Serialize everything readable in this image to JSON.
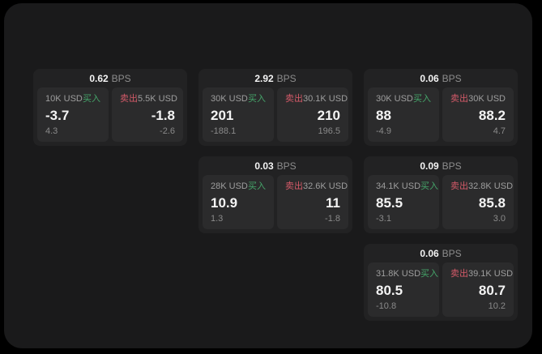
{
  "labels": {
    "bps_unit": "BPS",
    "buy": "买入",
    "sell": "卖出"
  },
  "colors": {
    "page_background": "#000000",
    "panel_background": "#1a1a1b",
    "card_background": "#222223",
    "tile_background": "#2b2b2c",
    "buy_green": "#45a56a",
    "sell_red": "#d45a68",
    "text_primary": "#f4f4f4",
    "text_secondary": "#9e9e9e"
  },
  "cards": [
    {
      "bps": "0.62",
      "buy": {
        "size": "10K USD",
        "price": "-3.7",
        "sub": "4.3"
      },
      "sell": {
        "size": "5.5K USD",
        "price": "-1.8",
        "sub": "-2.6"
      }
    },
    {
      "bps": "2.92",
      "buy": {
        "size": "30K USD",
        "price": "201",
        "sub": "-188.1"
      },
      "sell": {
        "size": "30.1K USD",
        "price": "210",
        "sub": "196.5"
      }
    },
    {
      "bps": "0.06",
      "buy": {
        "size": "30K USD",
        "price": "88",
        "sub": "-4.9"
      },
      "sell": {
        "size": "30K USD",
        "price": "88.2",
        "sub": "4.7"
      }
    },
    {
      "bps": "0.03",
      "buy": {
        "size": "28K USD",
        "price": "10.9",
        "sub": "1.3"
      },
      "sell": {
        "size": "32.6K USD",
        "price": "11",
        "sub": "-1.8"
      }
    },
    {
      "bps": "0.09",
      "buy": {
        "size": "34.1K USD",
        "price": "85.5",
        "sub": "-3.1"
      },
      "sell": {
        "size": "32.8K USD",
        "price": "85.8",
        "sub": "3.0"
      }
    },
    {
      "bps": "0.06",
      "buy": {
        "size": "31.8K USD",
        "price": "80.5",
        "sub": "-10.8"
      },
      "sell": {
        "size": "39.1K USD",
        "price": "80.7",
        "sub": "10.2"
      }
    }
  ]
}
